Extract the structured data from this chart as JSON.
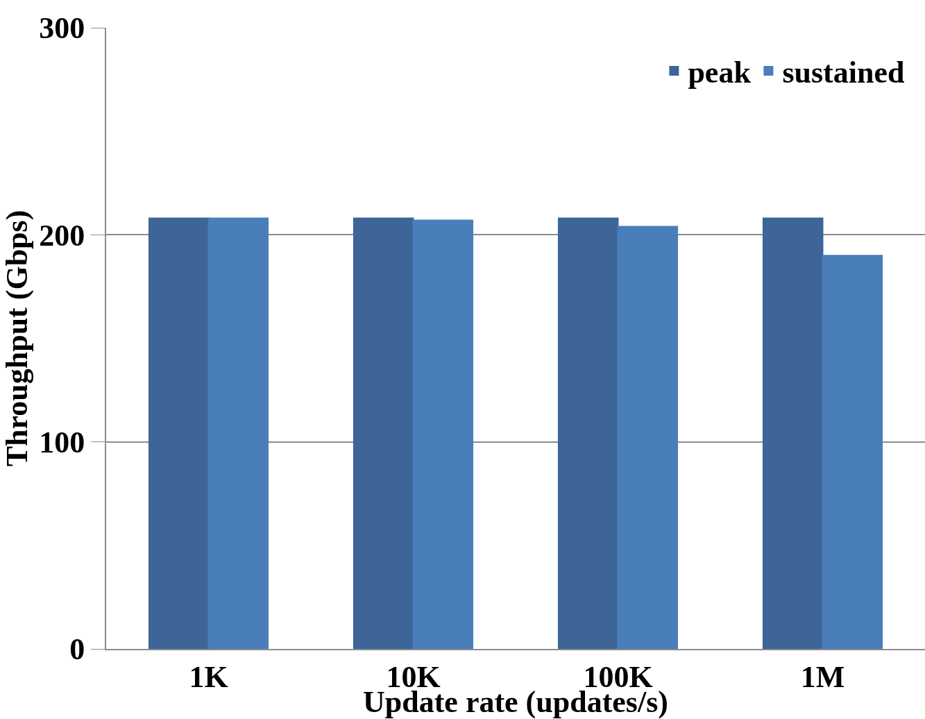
{
  "chart_data": {
    "type": "bar",
    "xlabel": "Update rate (updates/s)",
    "ylabel": "Throughput (Gbps)",
    "categories": [
      "1K",
      "10K",
      "100K",
      "1M"
    ],
    "series": [
      {
        "name": "peak",
        "color": "#3d6598",
        "values": [
          208,
          208,
          208,
          208
        ]
      },
      {
        "name": "sustained",
        "color": "#4a7ebb",
        "values": [
          208,
          207,
          204,
          190
        ]
      }
    ],
    "ylim": [
      0,
      300
    ],
    "yticks": [
      0,
      100,
      200,
      300
    ],
    "grid": "y",
    "legend": "top right"
  }
}
